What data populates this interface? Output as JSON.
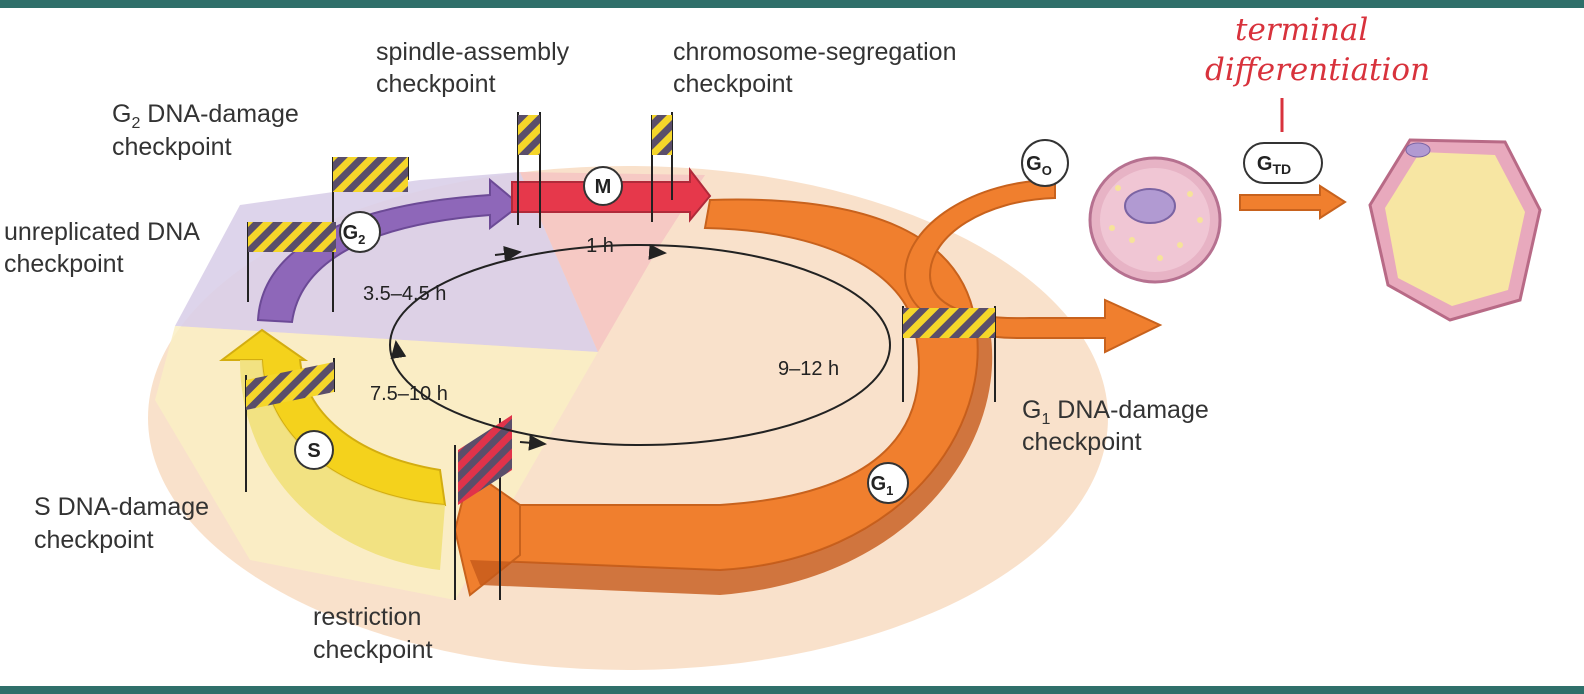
{
  "colors": {
    "frame": "#2f6f6a",
    "g1": "#f07f2e",
    "s": "#f4d21c",
    "g2": "#8e67b9",
    "m": "#e6384b",
    "disk": "#f8dcc2",
    "hand": "#d8323c"
  },
  "checkpoints": {
    "spindle": [
      "spindle-assembly",
      "checkpoint"
    ],
    "segregation": [
      "chromosome-segregation",
      "checkpoint"
    ],
    "g2_damage": [
      "G",
      "2",
      " DNA-damage",
      "checkpoint"
    ],
    "unreplicated": [
      "unreplicated DNA",
      "checkpoint"
    ],
    "g1_damage": [
      "G",
      "1",
      " DNA-damage",
      "checkpoint"
    ],
    "s_damage": [
      "S DNA-damage",
      "checkpoint"
    ],
    "restriction": [
      "restriction",
      "checkpoint"
    ]
  },
  "phases": {
    "m": "M",
    "g2": [
      "G",
      "2"
    ],
    "s": "S",
    "g1": [
      "G",
      "1"
    ],
    "g0": [
      "G",
      "O"
    ],
    "gtd": [
      "G",
      "TD"
    ]
  },
  "durations": {
    "m": "1 h",
    "g2": "3.5–4.5 h",
    "s": "7.5–10 h",
    "g1": "9–12 h"
  },
  "annotation": [
    "terminal",
    "differentiation"
  ]
}
